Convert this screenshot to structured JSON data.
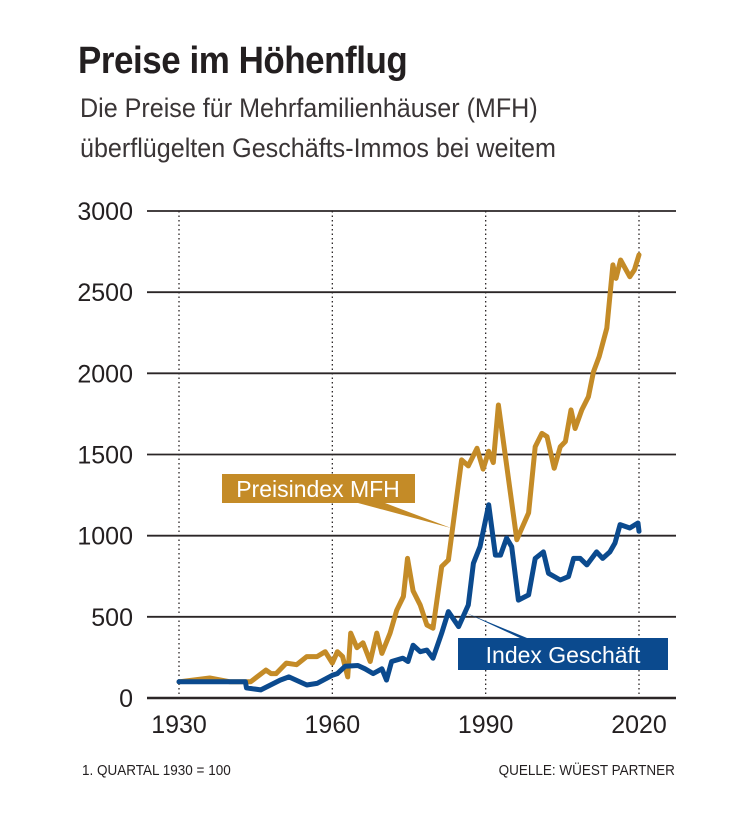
{
  "header": {
    "title": "Preise im Höhenflug",
    "subtitle_line1": "Die Preise für Mehrfamilienhäuser (MFH)",
    "subtitle_line2": "überflügelten Geschäfts-Immos bei weitem"
  },
  "footer": {
    "note": "1. QUARTAL 1930 = 100",
    "source": "QUELLE:  WÜEST PARTNER"
  },
  "colors": {
    "mfh": "#c48b27",
    "geschaeft": "#0b4a8e",
    "grid": "#2b2627"
  },
  "chart_data": {
    "type": "line",
    "title": "Preise im Höhenflug",
    "xlabel": "",
    "ylabel": "",
    "xlim": [
      1930,
      2020
    ],
    "ylim": [
      0,
      3000
    ],
    "xticks": [
      "1930",
      "1960",
      "1990",
      "2020"
    ],
    "yticks": [
      "0",
      "500",
      "1000",
      "1500",
      "2000",
      "2500",
      "3000"
    ],
    "grid": "horizontal solid, vertical dotted at x ticks",
    "series": [
      {
        "name": "Preisindex MFH",
        "color": "#c48b27",
        "x": [
          1930,
          1936,
          1940,
          1944,
          1947,
          1948,
          1949,
          1951,
          1953,
          1955,
          1957,
          1958.6,
          1960,
          1961,
          1962,
          1963,
          1963.6,
          1964.8,
          1966,
          1967.4,
          1968.7,
          1969.7,
          1971.3,
          1972.6,
          1973.9,
          1974.7,
          1975.8,
          1977.2,
          1978.5,
          1979.7,
          1981.4,
          1982.7,
          1985.3,
          1986.6,
          1988.3,
          1989.5,
          1990.6,
          1991.5,
          1992.5,
          1996.1,
          1998.4,
          1999.7,
          2001,
          2002,
          2003.4,
          2004.6,
          2005.6,
          2006.7,
          2007.5,
          2008.8,
          2010.1,
          2011.1,
          2012.2,
          2013.7,
          2014.9,
          2015.5,
          2016.4,
          2018.2,
          2019.1,
          2020
        ],
        "y": [
          100,
          123,
          100,
          100,
          172,
          150,
          150,
          215,
          205,
          255,
          255,
          285,
          215,
          285,
          255,
          130,
          400,
          310,
          340,
          225,
          400,
          275,
          400,
          540,
          625,
          860,
          660,
          573,
          450,
          430,
          810,
          850,
          1467,
          1430,
          1538,
          1410,
          1520,
          1450,
          1805,
          975,
          1140,
          1548,
          1630,
          1610,
          1415,
          1548,
          1580,
          1775,
          1660,
          1775,
          1856,
          2010,
          2102,
          2278,
          2668,
          2585,
          2698,
          2595,
          2637,
          2730
        ]
      },
      {
        "name": "Index Geschäft",
        "color": "#0b4a8e",
        "x": [
          1930,
          1943,
          1943.2,
          1946,
          1949.8,
          1951.5,
          1955,
          1957,
          1960,
          1961,
          1962.5,
          1965,
          1966.4,
          1968,
          1969.7,
          1970.6,
          1971.6,
          1973.8,
          1974.8,
          1975.8,
          1977.2,
          1978.5,
          1979.7,
          1981.4,
          1982.7,
          1984.7,
          1986.6,
          1987.6,
          1988.9,
          1990.6,
          1991.9,
          1992.9,
          1994.1,
          1995.1,
          1996.4,
          1998.4,
          1999.7,
          2001.3,
          2002.3,
          2004.6,
          2006.2,
          2007.2,
          2008.5,
          2009.8,
          2011.7,
          2012.9,
          2014.3,
          2015.3,
          2016.3,
          2018.2,
          2019.8,
          2020
        ],
        "y": [
          100,
          100,
          62,
          50,
          110,
          130,
          80,
          90,
          140,
          150,
          195,
          200,
          180,
          150,
          180,
          110,
          225,
          245,
          225,
          325,
          285,
          295,
          245,
          400,
          532,
          440,
          573,
          830,
          932,
          1190,
          880,
          880,
          985,
          932,
          603,
          635,
          860,
          900,
          768,
          727,
          748,
          860,
          860,
          820,
          900,
          860,
          900,
          955,
          1068,
          1047,
          1078,
          1027
        ]
      }
    ]
  }
}
